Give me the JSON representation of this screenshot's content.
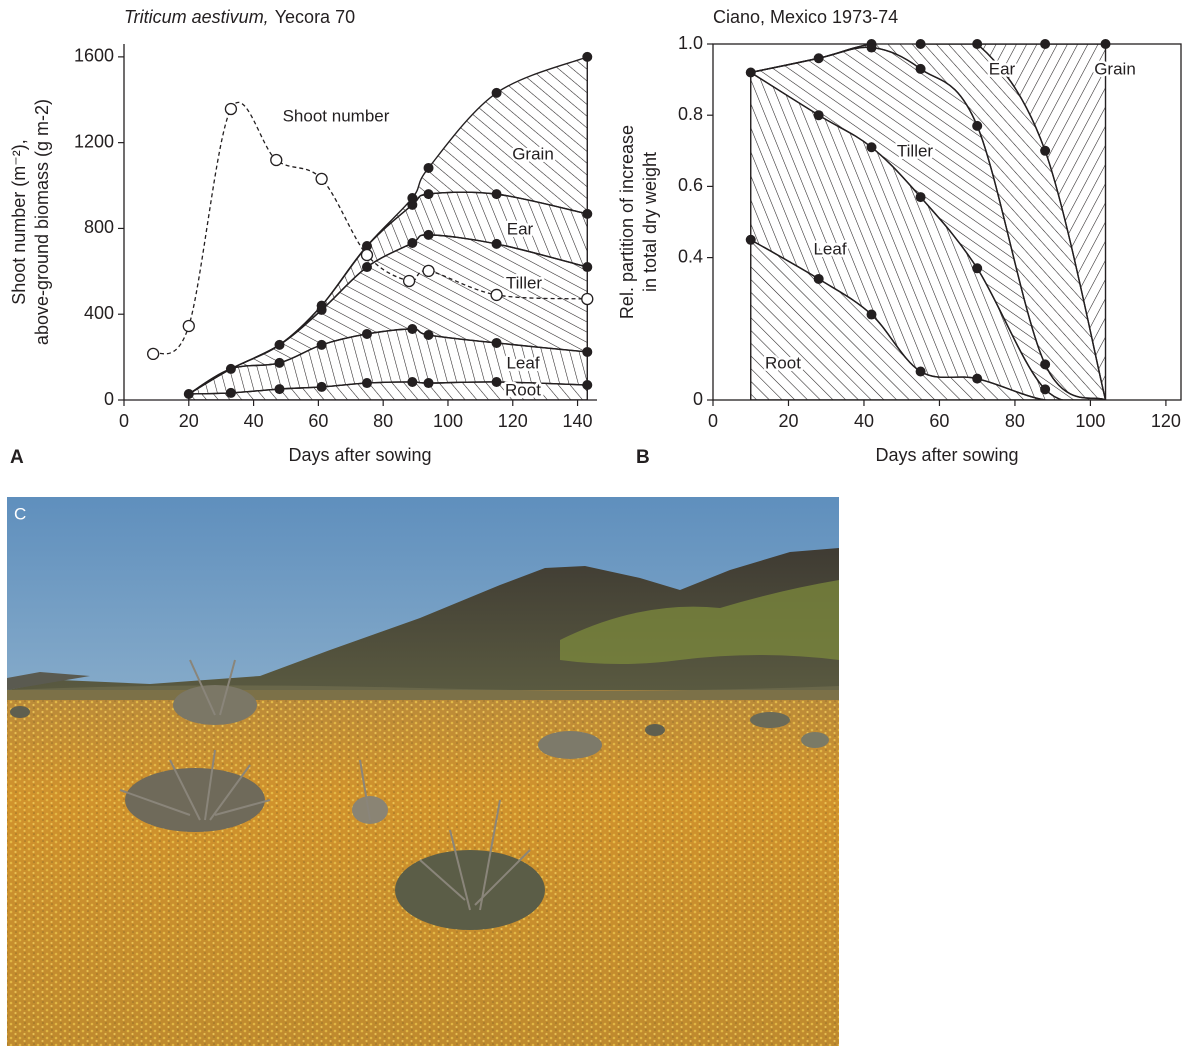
{
  "chart_data": [
    {
      "type": "area",
      "stacked": true,
      "panel": "A",
      "title": [
        "Triticum aestivum,",
        "Yecora 70"
      ],
      "xlabel": "Days after sowing",
      "ylabel": [
        "Shoot number (m⁻²),",
        "above-ground biomass (g m-2)"
      ],
      "xlim": [
        0,
        146
      ],
      "ylim": [
        0,
        1660
      ],
      "xticks": [
        0,
        20,
        40,
        60,
        80,
        100,
        120,
        140
      ],
      "yticks": [
        0,
        400,
        800,
        1200,
        1600
      ],
      "x": [
        20,
        33,
        48,
        61,
        75,
        89,
        94,
        115,
        143
      ],
      "series": [
        {
          "name": "Root",
          "color": "#231f20",
          "values": [
            28,
            33,
            51,
            61,
            79,
            84,
            79,
            84,
            70
          ]
        },
        {
          "name": "Leaf",
          "color": "#231f20",
          "values": [
            0,
            112,
            122,
            196,
            229,
            247,
            224,
            182,
            154
          ]
        },
        {
          "name": "Tiller",
          "color": "#231f20",
          "values": [
            0,
            0,
            84,
            163,
            312,
            401,
            467,
            462,
            396
          ]
        },
        {
          "name": "Ear",
          "color": "#231f20",
          "values": [
            0,
            0,
            0,
            20,
            98,
            178,
            190,
            232,
            248
          ]
        },
        {
          "name": "Grain",
          "color": "#231f20",
          "values": [
            0,
            0,
            0,
            0,
            0,
            32,
            122,
            472,
            732
          ]
        }
      ],
      "overlay": {
        "type": "line",
        "name": "Shoot number",
        "color": "#231f20",
        "dashed": true,
        "x": [
          9,
          20,
          33,
          47,
          61,
          75,
          88,
          94,
          115,
          143
        ],
        "values": [
          215,
          345,
          1357,
          1119,
          1031,
          676,
          555,
          602,
          490,
          471
        ]
      }
    },
    {
      "type": "area",
      "stacked": true,
      "panel": "B",
      "title": "Ciano, Mexico 1973-74",
      "xlabel": "Days after sowing",
      "ylabel": [
        "Rel. partition of increase",
        "in total dry weight"
      ],
      "frame": true,
      "xlim": [
        0,
        124
      ],
      "ylim": [
        0,
        1
      ],
      "xticks": [
        0,
        20,
        40,
        60,
        80,
        100,
        120
      ],
      "yticks": [
        0,
        0.4,
        0.6,
        0.8,
        {
          "value": 1,
          "label": "1.0"
        }
      ],
      "x": [
        10,
        28,
        42,
        55,
        70,
        88,
        104
      ],
      "series": [
        {
          "name": "Root",
          "color": "#231f20",
          "values": [
            0.45,
            0.34,
            0.24,
            0.08,
            0.06,
            0,
            0
          ]
        },
        {
          "name": "Leaf",
          "color": "#231f20",
          "values": [
            0.47,
            0.46,
            0.47,
            0.49,
            0.31,
            0.03,
            0
          ]
        },
        {
          "name": "Tiller",
          "color": "#231f20",
          "values": [
            0,
            0.16,
            0.28,
            0.36,
            0.4,
            0.07,
            0
          ]
        },
        {
          "name": "Ear",
          "color": "#231f20",
          "values": [
            0,
            0,
            0.01,
            0.07,
            0.23,
            0.6,
            0
          ]
        },
        {
          "name": "Grain",
          "color": "#231f20",
          "values": [
            0,
            0,
            0,
            0,
            0,
            0.3,
            1.0
          ]
        }
      ]
    }
  ],
  "photo": {
    "label": "C"
  }
}
